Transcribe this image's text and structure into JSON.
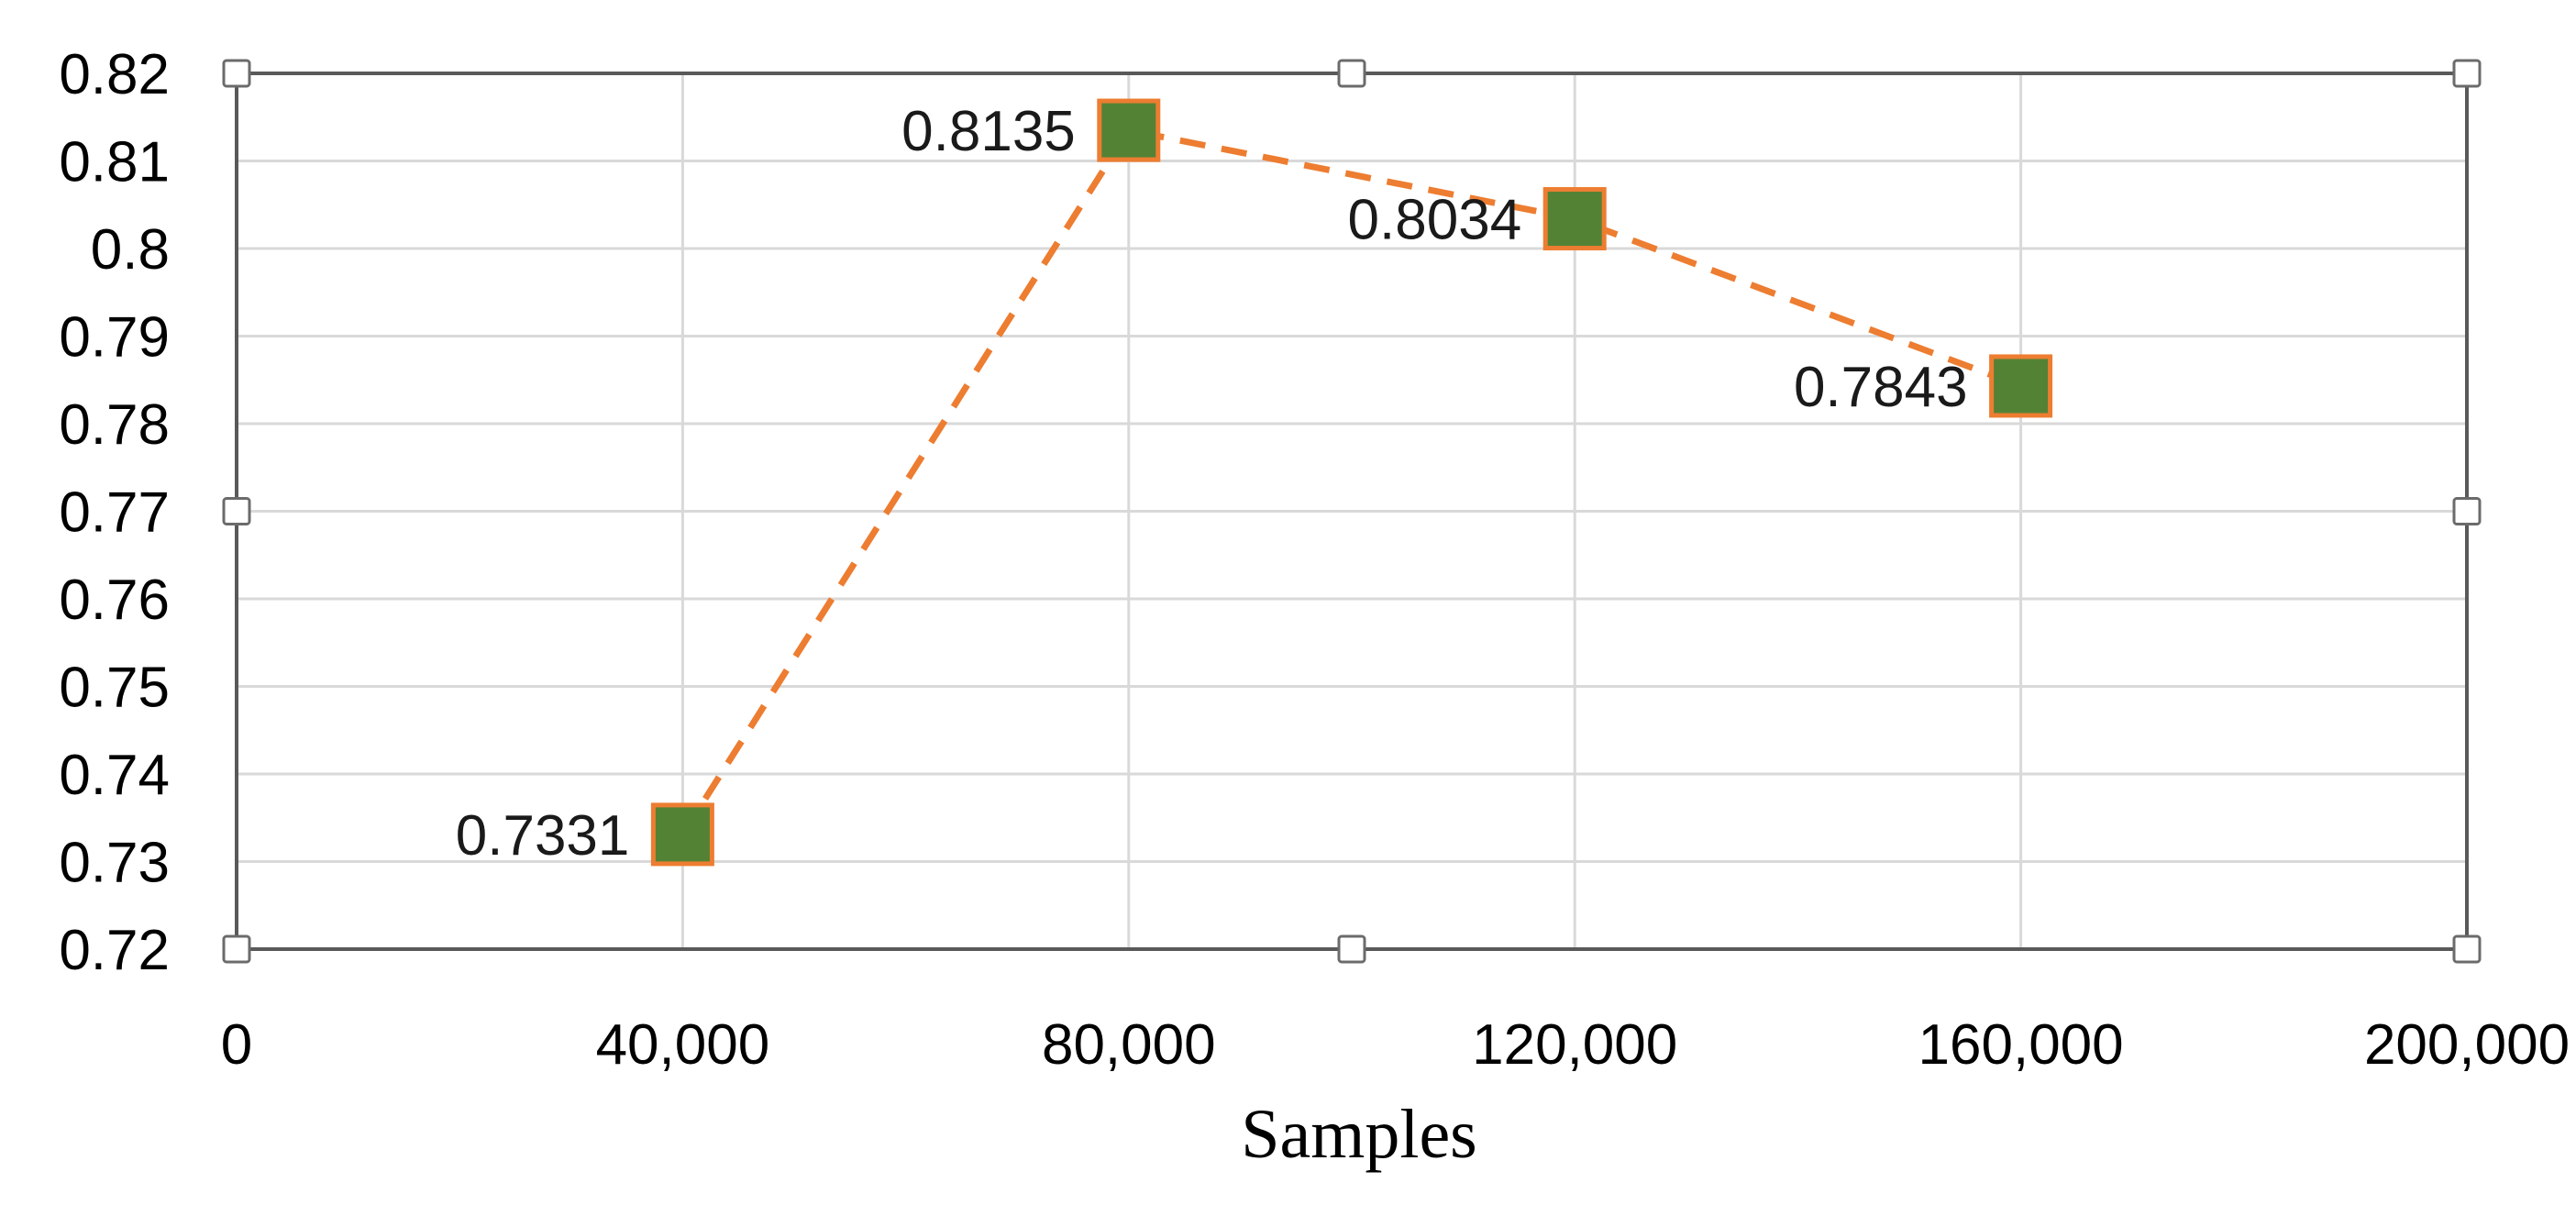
{
  "chart_data": {
    "type": "line",
    "x": [
      40000,
      80000,
      120000,
      160000
    ],
    "series": [
      {
        "values": [
          0.7331,
          0.8135,
          0.8034,
          0.7843
        ],
        "data_labels": [
          "0.7331",
          "0.8135",
          "0.8034",
          "0.7843"
        ],
        "line_color": "#ED7D31",
        "line_style": "dashed",
        "marker": "square",
        "marker_fill": "#548235",
        "marker_edge": "#ED7D31"
      }
    ],
    "xlabel": "Samples",
    "ylabel": "",
    "title": "",
    "xlim": [
      0,
      200000
    ],
    "ylim": [
      0.72,
      0.82
    ],
    "x_ticks": [
      "0",
      "40,000",
      "80,000",
      "120,000",
      "160,000",
      "200,000"
    ],
    "y_ticks": [
      "0.82",
      "0.81",
      "0.8",
      "0.79",
      "0.78",
      "0.77",
      "0.76",
      "0.75",
      "0.74",
      "0.73",
      "0.72"
    ],
    "grid": true,
    "legend": "none",
    "colors": {
      "grid": "#D9D9D9",
      "frame": "#595959"
    }
  }
}
